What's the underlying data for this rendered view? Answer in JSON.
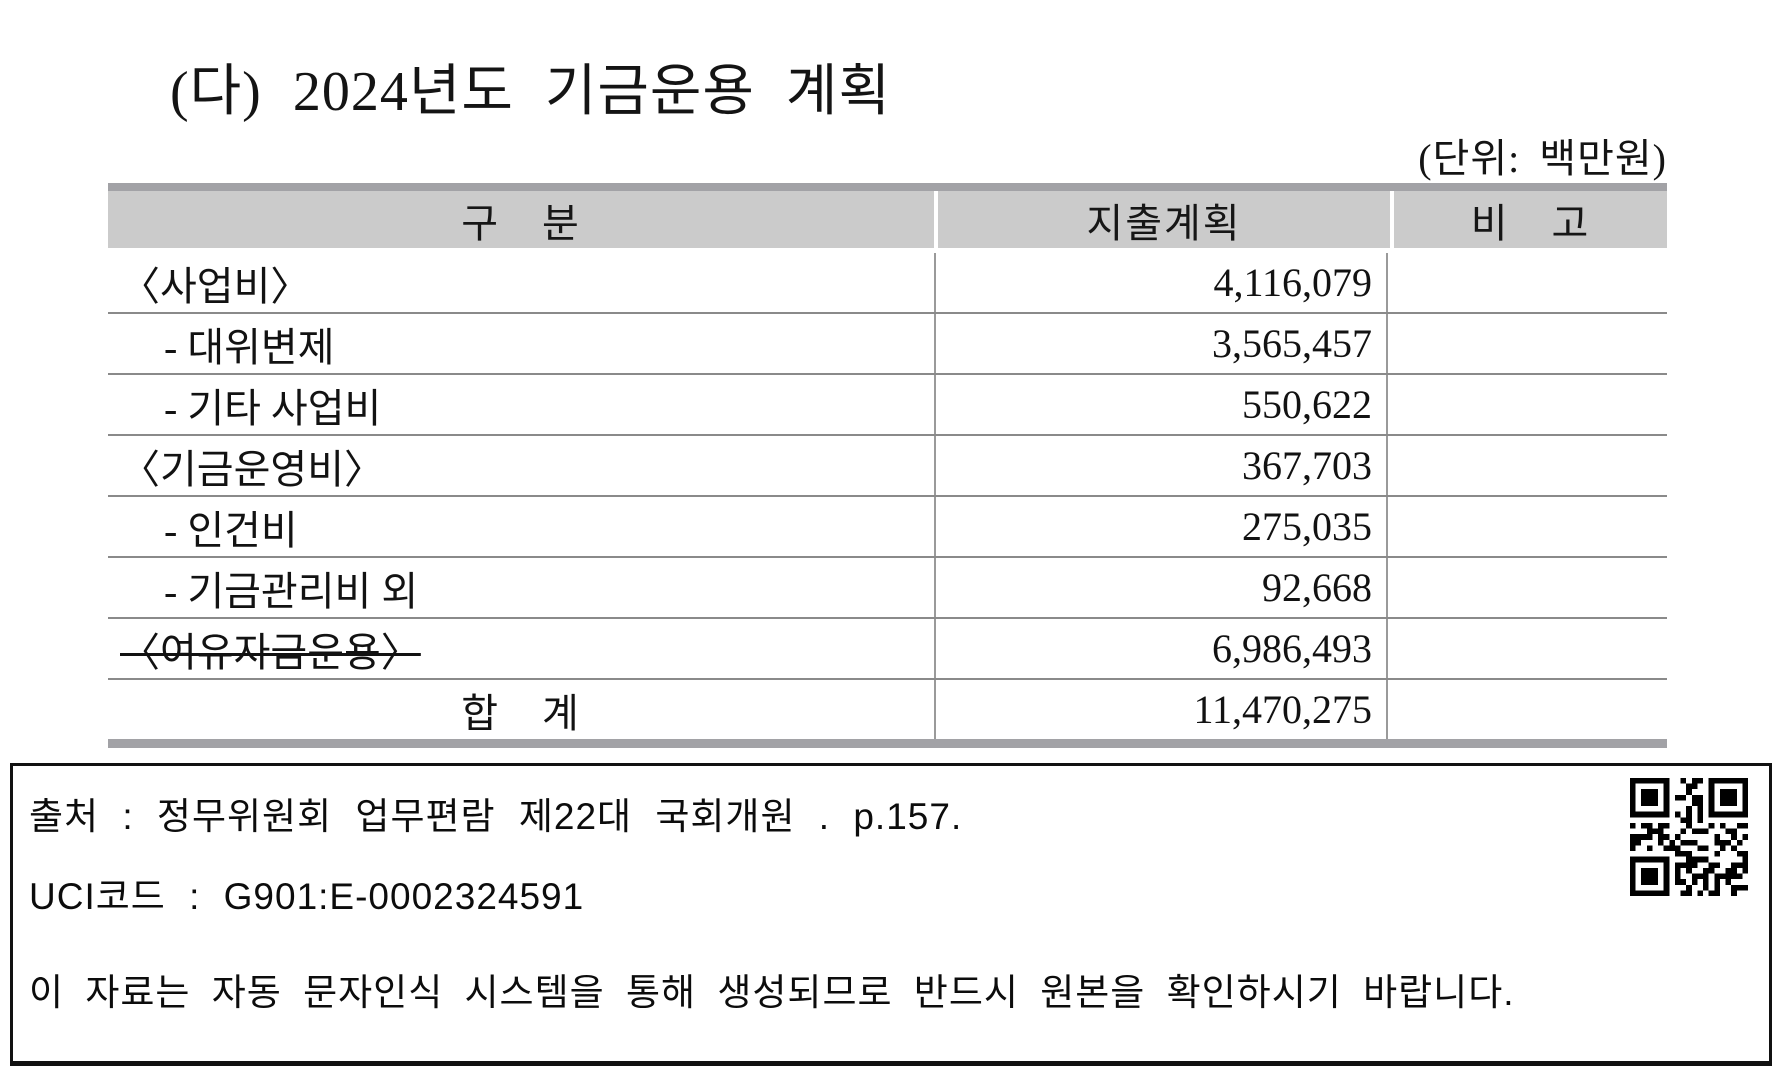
{
  "page": {
    "title": "(다) 2024년도 기금운용 계획",
    "unit_label": "(단위: 백만원)"
  },
  "table": {
    "columns": [
      "구　분",
      "지출계획",
      "비　고"
    ],
    "rows": [
      {
        "label": "〈사업비〉",
        "indent": "main",
        "strike": false,
        "value": "4,116,079",
        "note": ""
      },
      {
        "label": "- 대위변제",
        "indent": "sub",
        "strike": false,
        "value": "3,565,457",
        "note": ""
      },
      {
        "label": "- 기타 사업비",
        "indent": "sub",
        "strike": false,
        "value": "550,622",
        "note": ""
      },
      {
        "label": "〈기금운영비〉",
        "indent": "main",
        "strike": false,
        "value": "367,703",
        "note": ""
      },
      {
        "label": "- 인건비",
        "indent": "sub",
        "strike": false,
        "value": "275,035",
        "note": ""
      },
      {
        "label": "- 기금관리비 외",
        "indent": "sub",
        "strike": false,
        "value": "92,668",
        "note": ""
      },
      {
        "label": "〈여유자금운용〉",
        "indent": "main",
        "strike": true,
        "value": "6,986,493",
        "note": ""
      },
      {
        "label": "합　계",
        "indent": "total",
        "strike": false,
        "value": "11,470,275",
        "note": ""
      }
    ]
  },
  "footer": {
    "source_line": "출처 : 정무위원회 업무편람 제22대 국회개원 . p.157.",
    "uci_line": "UCI코드 : G901:E-0002324591",
    "notice_line": "이 자료는 자동 문자인식 시스템을 통해 생성되므로 반드시 원본을 확인하시기 바랍니다.",
    "qr_code": "qr-code"
  },
  "colors": {
    "header_background": "#cbcbcb",
    "table_bar": "#a2a2a6",
    "table_line": "#8a8a8a",
    "text": "#111111",
    "background": "#ffffff"
  }
}
